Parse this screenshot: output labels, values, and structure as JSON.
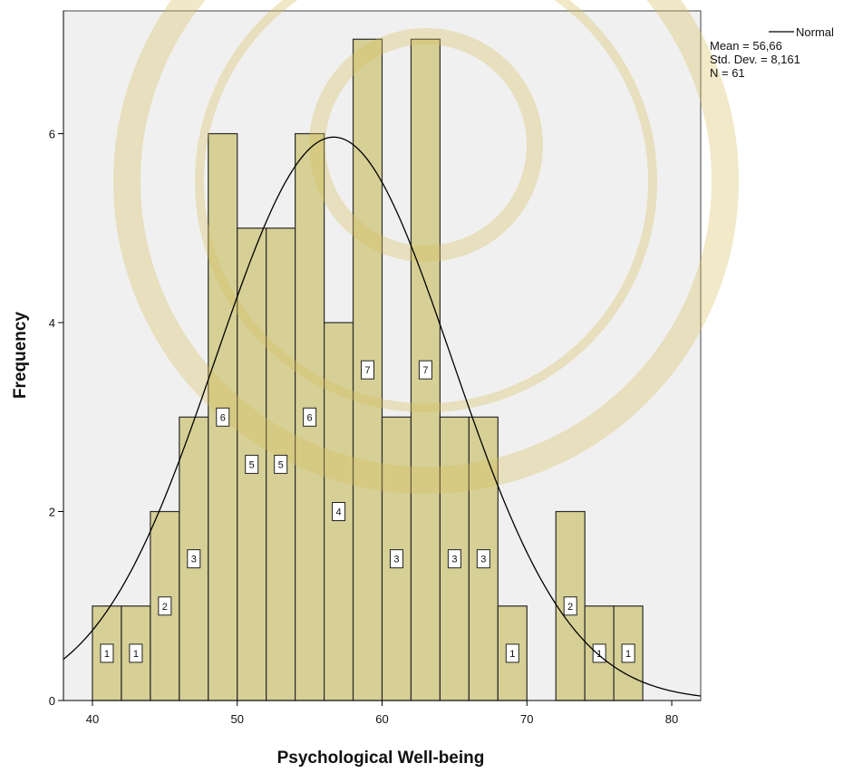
{
  "chart_data": {
    "type": "bar",
    "xlabel": "Psychological Well-being",
    "ylabel": "Frequency",
    "xlim": [
      38,
      82
    ],
    "ylim": [
      0,
      7.3
    ],
    "x_ticks": [
      40,
      50,
      60,
      70,
      80
    ],
    "y_ticks": [
      0,
      2,
      4,
      6
    ],
    "bin_width": 2,
    "bins": [
      {
        "start": 40,
        "value": 1,
        "label": "1"
      },
      {
        "start": 42,
        "value": 1,
        "label": "1"
      },
      {
        "start": 44,
        "value": 2,
        "label": "2"
      },
      {
        "start": 46,
        "value": 3,
        "label": "3"
      },
      {
        "start": 48,
        "value": 6,
        "label": "6"
      },
      {
        "start": 50,
        "value": 5,
        "label": "5"
      },
      {
        "start": 52,
        "value": 5,
        "label": "5"
      },
      {
        "start": 54,
        "value": 6,
        "label": "6"
      },
      {
        "start": 56,
        "value": 4,
        "label": "4"
      },
      {
        "start": 58,
        "value": 7,
        "label": "7"
      },
      {
        "start": 60,
        "value": 3,
        "label": "3"
      },
      {
        "start": 62,
        "value": 7,
        "label": "7"
      },
      {
        "start": 64,
        "value": 3,
        "label": "3"
      },
      {
        "start": 66,
        "value": 3,
        "label": "3"
      },
      {
        "start": 68,
        "value": 1,
        "label": "1"
      },
      {
        "start": 72,
        "value": 2,
        "label": "2"
      },
      {
        "start": 74,
        "value": 1,
        "label": "1"
      },
      {
        "start": 76,
        "value": 1,
        "label": "1"
      }
    ],
    "normal_curve": {
      "mean": 56.66,
      "sd": 8.161,
      "n": 61
    },
    "legend": {
      "series_name": "Normal",
      "lines": [
        "Mean = 56,66",
        "Std. Dev. = 8,161",
        "N = 61"
      ],
      "placement": "top-right"
    },
    "colors": {
      "bar_fill": "#d6d096",
      "bar_stroke": "#2a2a2a",
      "plot_bg": "#f0f0f0",
      "curve": "#000000"
    }
  }
}
